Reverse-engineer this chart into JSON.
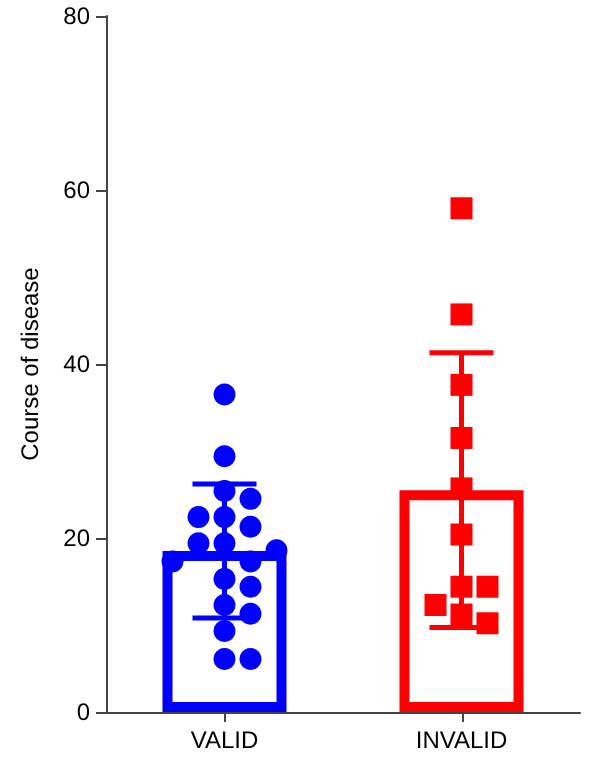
{
  "chart_data": {
    "type": "bar",
    "ylabel": "Course of disease",
    "categories": [
      "VALID",
      "INVALID"
    ],
    "values": [
      18.5,
      25.5
    ],
    "colors": [
      "#0000ff",
      "#ff0000"
    ],
    "errors": [
      7.7,
      15.8
    ],
    "series": [
      {
        "type": "scatter",
        "marker": "circle",
        "color": "#0000ff",
        "x": [
          "VALID",
          "VALID",
          "VALID",
          "VALID",
          "VALID",
          "VALID",
          "VALID",
          "VALID",
          "VALID",
          "VALID",
          "VALID",
          "VALID",
          "VALID",
          "VALID",
          "VALID",
          "VALID",
          "VALID",
          "VALID",
          "VALID"
        ],
        "values": [
          36.5,
          29.4,
          25.4,
          24.5,
          22.4,
          22.4,
          21.3,
          19.4,
          19.4,
          18.6,
          17.3,
          17.3,
          15.3,
          14.4,
          12.3,
          11.3,
          9.3,
          6.1,
          6.1
        ]
      },
      {
        "type": "scatter",
        "marker": "square",
        "color": "#ff0000",
        "x": [
          "INVALID",
          "INVALID",
          "INVALID",
          "INVALID",
          "INVALID",
          "INVALID",
          "INVALID",
          "INVALID",
          "INVALID",
          "INVALID",
          "INVALID"
        ],
        "values": [
          57.9,
          45.7,
          37.6,
          31.5,
          25.7,
          20.4,
          14.4,
          14.4,
          12.3,
          11.2,
          10.2
        ]
      }
    ],
    "ylim": [
      0,
      80
    ],
    "yticks": [
      0,
      20,
      40,
      60,
      80
    ],
    "grid": false
  }
}
